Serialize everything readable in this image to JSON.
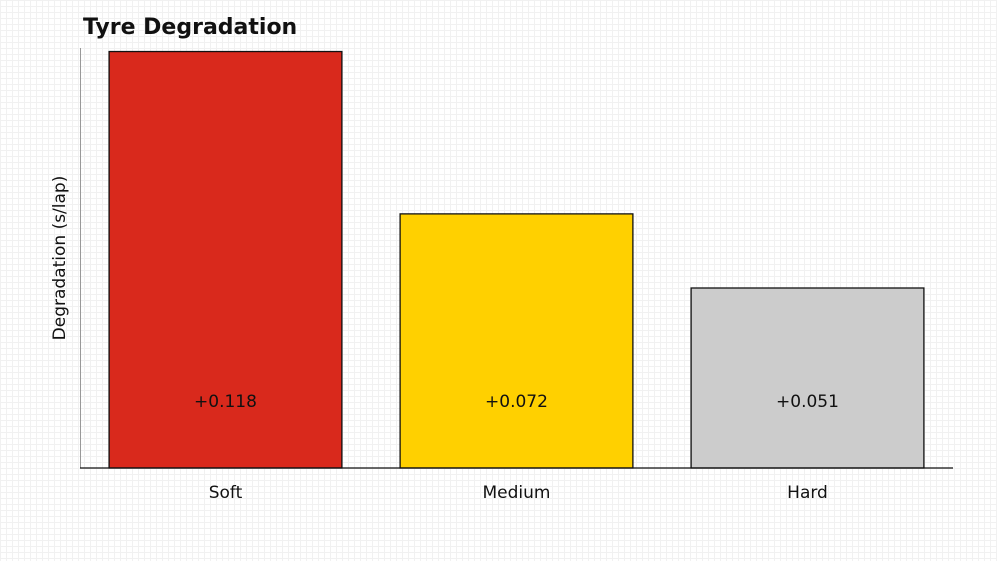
{
  "chart_data": {
    "type": "bar",
    "title": "Tyre Degradation",
    "y_label": "Degradation (s/lap)",
    "categories": [
      "Soft",
      "Medium",
      "Hard"
    ],
    "values": [
      0.118,
      0.072,
      0.051
    ],
    "value_labels": [
      "+0.118",
      "+0.072",
      "+0.051"
    ],
    "colors": [
      "#d9291c",
      "#ffd000",
      "#cccccc"
    ],
    "ylim": [
      0,
      0.119
    ]
  }
}
